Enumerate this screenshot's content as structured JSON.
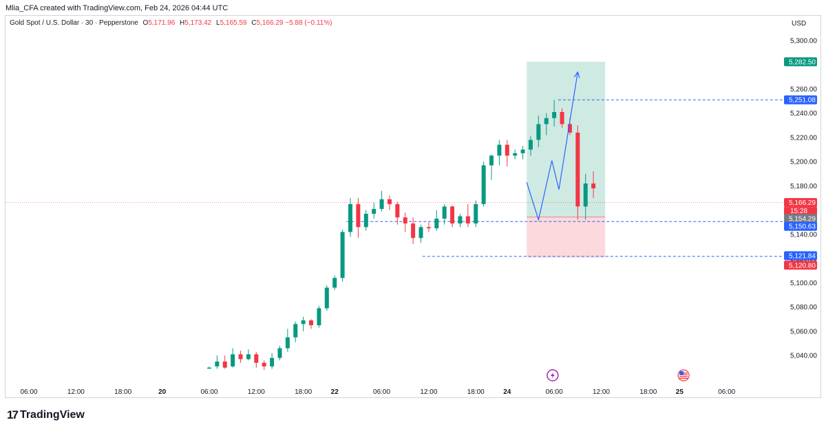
{
  "header": {
    "caption": "Mlia_CFA created with TradingView.com, Feb 24, 2026 04:44 UTC"
  },
  "legend": {
    "symbol": "Gold Spot / U.S. Dollar · 30 · Pepperstone",
    "open_label": "O",
    "open": "5,171.96",
    "high_label": "H",
    "high": "5,173.42",
    "low_label": "L",
    "low": "5,165.59",
    "close_label": "C",
    "close": "5,166.29",
    "change": "−5.88 (−0.11%)"
  },
  "currency": "USD",
  "footer": {
    "brand": "TradingView",
    "logo_glyph": "17"
  },
  "colors": {
    "up": "#089981",
    "down": "#f23645",
    "blue": "#2962ff",
    "target_fill": "#cfeae3",
    "stop_fill": "#fbd9dc"
  },
  "chart_data": {
    "type": "candlestick",
    "y_axis": {
      "min": 5030,
      "max": 5310,
      "ticks": [
        "5,040.00",
        "5,060.00",
        "5,080.00",
        "5,100.00",
        "5,120.00",
        "5,140.00",
        "5,160.00",
        "5,180.00",
        "5,200.00",
        "5,220.00",
        "5,240.00",
        "5,260.00",
        "5,300.00"
      ],
      "tick_values": [
        5040,
        5060,
        5080,
        5100,
        5120,
        5140,
        5160,
        5180,
        5200,
        5220,
        5240,
        5260,
        5300
      ]
    },
    "x_axis": {
      "min": 0,
      "max": 116,
      "labels": [
        {
          "t": 3,
          "text": "06:00"
        },
        {
          "t": 9,
          "text": "12:00"
        },
        {
          "t": 15,
          "text": "18:00"
        },
        {
          "t": 20,
          "text": "20"
        },
        {
          "t": 26,
          "text": "06:00"
        },
        {
          "t": 32,
          "text": "12:00"
        },
        {
          "t": 38,
          "text": "18:00"
        },
        {
          "t": 42,
          "text": "22"
        },
        {
          "t": 48,
          "text": "06:00"
        },
        {
          "t": 54,
          "text": "12:00"
        },
        {
          "t": 60,
          "text": "18:00"
        },
        {
          "t": 64,
          "text": "24"
        },
        {
          "t": 70,
          "text": "06:00"
        },
        {
          "t": 76,
          "text": "12:00"
        },
        {
          "t": 82,
          "text": "18:00"
        },
        {
          "t": 86,
          "text": "25"
        },
        {
          "t": 92,
          "text": "06:00"
        }
      ]
    },
    "candles": [
      [
        26,
        5030,
        5031,
        5029,
        5030
      ],
      [
        27,
        5031,
        5040,
        5029,
        5035
      ],
      [
        28,
        5035,
        5040,
        5029,
        5030
      ],
      [
        29,
        5031,
        5046,
        5030,
        5041
      ],
      [
        30,
        5041,
        5044,
        5034,
        5037
      ],
      [
        31,
        5037,
        5045,
        5036,
        5041
      ],
      [
        32,
        5041,
        5043,
        5030,
        5034
      ],
      [
        33,
        5034,
        5036,
        5028,
        5031
      ],
      [
        34,
        5031,
        5042,
        5029,
        5038
      ],
      [
        35,
        5038,
        5048,
        5036,
        5046
      ],
      [
        36,
        5046,
        5062,
        5043,
        5055
      ],
      [
        37,
        5055,
        5068,
        5051,
        5066
      ],
      [
        38,
        5066,
        5072,
        5060,
        5069
      ],
      [
        39,
        5069,
        5070,
        5062,
        5065
      ],
      [
        40,
        5065,
        5081,
        5063,
        5079
      ],
      [
        41,
        5079,
        5098,
        5077,
        5096
      ],
      [
        42,
        5096,
        5106,
        5094,
        5104
      ],
      [
        43,
        5104,
        5144,
        5101,
        5142
      ],
      [
        44,
        5142,
        5170,
        5138,
        5165
      ],
      [
        45,
        5165,
        5170,
        5137,
        5146
      ],
      [
        46,
        5146,
        5160,
        5143,
        5157
      ],
      [
        47,
        5157,
        5166,
        5153,
        5161
      ],
      [
        48,
        5161,
        5176,
        5159,
        5169
      ],
      [
        49,
        5169,
        5172,
        5160,
        5165
      ],
      [
        50,
        5165,
        5167,
        5148,
        5154
      ],
      [
        51,
        5154,
        5158,
        5142,
        5149
      ],
      [
        52,
        5149,
        5154,
        5132,
        5137
      ],
      [
        53,
        5137,
        5148,
        5133,
        5146
      ],
      [
        54,
        5146,
        5150,
        5142,
        5145
      ],
      [
        55,
        5145,
        5160,
        5143,
        5153
      ],
      [
        56,
        5153,
        5165,
        5148,
        5163
      ],
      [
        57,
        5163,
        5164,
        5146,
        5149
      ],
      [
        58,
        5149,
        5157,
        5146,
        5155
      ],
      [
        59,
        5155,
        5165,
        5146,
        5149
      ],
      [
        60,
        5149,
        5168,
        5146,
        5165
      ],
      [
        61,
        5165,
        5200,
        5163,
        5197
      ],
      [
        62,
        5197,
        5206,
        5185,
        5205
      ],
      [
        63,
        5205,
        5218,
        5197,
        5214
      ],
      [
        64,
        5214,
        5218,
        5196,
        5205
      ],
      [
        65,
        5205,
        5210,
        5202,
        5207
      ],
      [
        66,
        5207,
        5213,
        5202,
        5210
      ],
      [
        67,
        5210,
        5221,
        5205,
        5218
      ],
      [
        68,
        5218,
        5238,
        5212,
        5231
      ],
      [
        69,
        5231,
        5240,
        5222,
        5236
      ],
      [
        70,
        5236,
        5251,
        5229,
        5241
      ],
      [
        71,
        5241,
        5244,
        5228,
        5231
      ],
      [
        72,
        5231,
        5236,
        5222,
        5224
      ],
      [
        73,
        5224,
        5230,
        5152,
        5163
      ],
      [
        74,
        5163,
        5190,
        5152,
        5182
      ],
      [
        75,
        5182,
        5192,
        5170,
        5178
      ]
    ],
    "levels": {
      "last_price": {
        "value": 5166.29,
        "label": "5,166.29",
        "countdown": "15:28"
      },
      "target": {
        "value": 5282.5,
        "label": "5,282.50"
      },
      "high_line": {
        "value": 5251.08,
        "label": "5,251.08"
      },
      "entry": {
        "value": 5154.29,
        "label": "5,154.29"
      },
      "support": {
        "value": 5150.63,
        "label": "5,150.63"
      },
      "low_line": {
        "value": 5121.84,
        "label": "5,121.84"
      },
      "stop": {
        "value": 5120.8,
        "label": "5,120.80"
      }
    },
    "position": {
      "t_start": 66.5,
      "t_end": 76.5,
      "target": 5282.5,
      "entry": 5154.29,
      "stop": 5120.8
    },
    "projection": [
      [
        66.5,
        5183
      ],
      [
        68,
        5152
      ],
      [
        69.7,
        5201
      ],
      [
        70.6,
        5177
      ],
      [
        73,
        5274
      ]
    ],
    "event_icons": [
      {
        "t": 69.8,
        "name": "lightning-event-icon"
      },
      {
        "t": 86.5,
        "name": "us-flag-event-icon"
      }
    ]
  }
}
